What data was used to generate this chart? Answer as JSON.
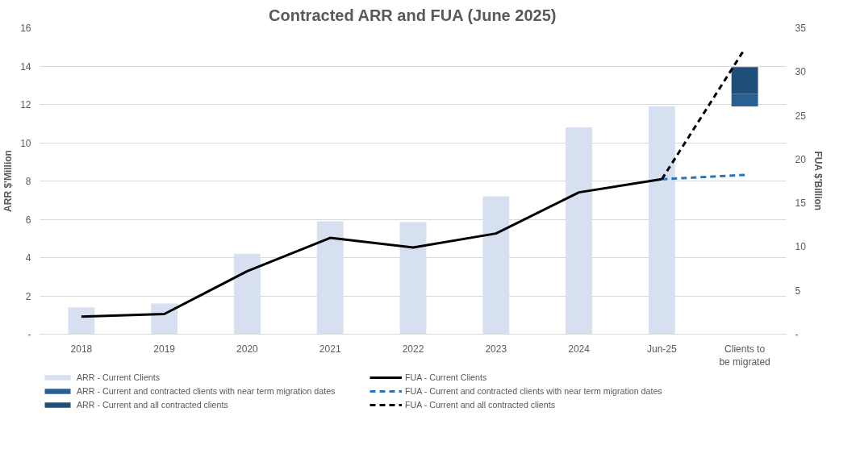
{
  "chart_data": {
    "type": "bar",
    "title": "Contracted ARR and FUA (June 2025)",
    "ylabel": "ARR $'Million",
    "y2label": "FUA $'Billion",
    "categories": [
      "2018",
      "2019",
      "2020",
      "2021",
      "2022",
      "2023",
      "2024",
      "Jun-25",
      "Clients to be migrated"
    ],
    "series": [
      {
        "name": "ARR - Current Clients",
        "color": "#d6e0f0",
        "values": [
          1.4,
          1.6,
          4.2,
          5.9,
          5.85,
          7.2,
          10.8,
          11.9,
          null
        ]
      },
      {
        "name": "ARR - Current and contracted clients with near term migration dates",
        "color": "#2a5f93",
        "base": [
          null,
          null,
          null,
          null,
          null,
          null,
          null,
          null,
          11.9
        ],
        "values": [
          null,
          null,
          null,
          null,
          null,
          null,
          null,
          null,
          0.65
        ]
      },
      {
        "name": "ARR - Current and all contracted clients",
        "color": "#1f4e79",
        "base": [
          null,
          null,
          null,
          null,
          null,
          null,
          null,
          null,
          12.55
        ],
        "values": [
          null,
          null,
          null,
          null,
          null,
          null,
          null,
          null,
          1.4
        ]
      },
      {
        "name": "FUA - Current Clients",
        "type": "line",
        "axis": "y2",
        "color": "#000000",
        "line_style": "solid",
        "values": [
          2.0,
          2.3,
          7.2,
          11.0,
          9.9,
          11.5,
          16.2,
          17.7,
          null
        ]
      },
      {
        "name": "FUA - Current and contracted clients with near term migration dates",
        "type": "line",
        "axis": "y2",
        "color": "#2e75b6",
        "line_style": "dashed",
        "values": [
          null,
          null,
          null,
          null,
          null,
          null,
          null,
          17.7,
          18.2
        ]
      },
      {
        "name": "FUA - Current and all contracted clients",
        "type": "line",
        "axis": "y2",
        "color": "#000000",
        "line_style": "dashed",
        "values": [
          null,
          null,
          null,
          null,
          null,
          null,
          null,
          17.7,
          32.6
        ]
      }
    ],
    "ylim": [
      0,
      16
    ],
    "yticks": [
      {
        "value": 0,
        "label": "-"
      },
      2,
      4,
      6,
      8,
      10,
      12,
      14,
      16
    ],
    "y2lim": [
      0,
      35
    ],
    "y2ticks": [
      {
        "value": 0,
        "label": "-"
      },
      5,
      10,
      15,
      20,
      25,
      30,
      35
    ],
    "grid": "y",
    "legend": "bottom"
  }
}
